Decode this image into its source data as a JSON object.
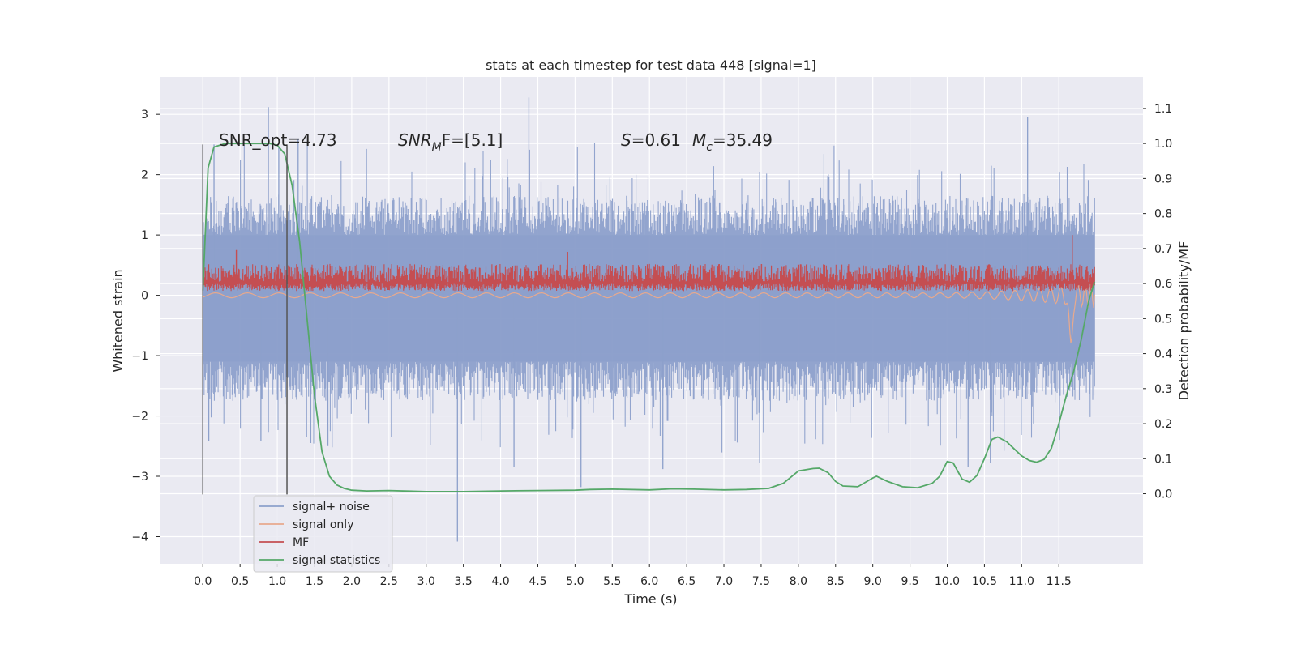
{
  "chart_data": {
    "type": "line",
    "title": "stats at each timestep for test data 448 [signal=1]",
    "xlabel": "Time (s)",
    "ylabel": "Whitened strain",
    "y2label": "Detection probability/MF",
    "xlim": [
      -0.58,
      12.63
    ],
    "ylim": [
      -4.45,
      3.62
    ],
    "y2lim": [
      -0.2,
      1.19
    ],
    "grid": true,
    "legend_position": "lower-left",
    "xticks": [
      "0.0",
      "0.5",
      "1.0",
      "1.5",
      "2.0",
      "2.5",
      "3.0",
      "3.5",
      "4.0",
      "4.5",
      "5.0",
      "5.5",
      "6.0",
      "6.5",
      "7.0",
      "7.5",
      "8.0",
      "8.5",
      "9.0",
      "9.5",
      "10.0",
      "10.5",
      "11.0",
      "11.5"
    ],
    "yticks": [
      "3",
      "2",
      "1",
      "0",
      "−1",
      "−2",
      "−3",
      "−4"
    ],
    "y2ticks": [
      "1.1",
      "1.0",
      "0.9",
      "0.8",
      "0.7",
      "0.6",
      "0.5",
      "0.4",
      "0.3",
      "0.2",
      "0.1",
      "0.0"
    ],
    "vlines": [
      0.0,
      1.13
    ],
    "annotations": [
      {
        "id": "snr_opt",
        "text": "SNR_opt=4.73"
      },
      {
        "id": "snr_mf",
        "prefix": "SNR",
        "sub": "M",
        "suffix": "F=[5.1]"
      },
      {
        "id": "s_mc",
        "s_label": "S",
        "s_value": "=0.61",
        "m_label": "M",
        "m_sub": "c",
        "m_value": "=35.49"
      }
    ],
    "series": [
      {
        "name": "signal+ noise",
        "color": "#8da0cb",
        "kind": "noise_band",
        "t_range": [
          0.0,
          11.98
        ],
        "inner_band": [
          -1.1,
          1.0
        ],
        "outer_band": [
          -1.75,
          1.65
        ],
        "spikes": [
          {
            "t": 0.88,
            "v": 3.12
          },
          {
            "t": 1.02,
            "v": 2.45
          },
          {
            "t": 0.15,
            "v": 2.5
          },
          {
            "t": 3.42,
            "v": -4.08
          },
          {
            "t": 4.38,
            "v": 3.28
          },
          {
            "t": 5.08,
            "v": -3.18
          },
          {
            "t": 0.08,
            "v": -2.42
          },
          {
            "t": 0.78,
            "v": -2.42
          },
          {
            "t": 1.68,
            "v": -2.5
          },
          {
            "t": 4.18,
            "v": -2.85
          },
          {
            "t": 6.18,
            "v": -2.88
          },
          {
            "t": 7.48,
            "v": -2.78
          },
          {
            "t": 10.28,
            "v": -2.85
          },
          {
            "t": 10.58,
            "v": -2.78
          },
          {
            "t": 11.08,
            "v": 2.95
          },
          {
            "t": 1.28,
            "v": 2.6
          },
          {
            "t": 1.45,
            "v": -2.45
          }
        ]
      },
      {
        "name": "signal only",
        "color": "#e8a98d",
        "kind": "chirp",
        "t_range": [
          0.0,
          11.98
        ],
        "end_dip": -0.92,
        "end_peak": 0.35
      },
      {
        "name": "MF",
        "color": "#c44e52",
        "kind": "mf_band",
        "t_range": [
          0.0,
          11.98
        ],
        "band": [
          0.07,
          0.52
        ],
        "spikes": [
          {
            "t": 11.68,
            "v": 1.0
          },
          {
            "t": 0.45,
            "v": 0.75
          },
          {
            "t": 4.9,
            "v": 0.72
          }
        ]
      },
      {
        "name": "signal statistics",
        "color": "#55a868",
        "axis": "y2",
        "x": [
          0.0,
          0.07,
          0.15,
          0.3,
          0.5,
          0.7,
          0.9,
          1.0,
          1.1,
          1.2,
          1.3,
          1.4,
          1.5,
          1.6,
          1.7,
          1.8,
          1.9,
          2.0,
          2.2,
          2.5,
          3.0,
          3.5,
          4.0,
          4.5,
          5.0,
          5.2,
          5.5,
          6.0,
          6.3,
          6.6,
          7.0,
          7.3,
          7.6,
          7.8,
          8.0,
          8.2,
          8.28,
          8.4,
          8.5,
          8.6,
          8.8,
          9.0,
          9.05,
          9.2,
          9.4,
          9.6,
          9.8,
          9.9,
          10.0,
          10.08,
          10.2,
          10.3,
          10.4,
          10.5,
          10.6,
          10.68,
          10.8,
          10.9,
          11.0,
          11.1,
          11.2,
          11.3,
          11.4,
          11.5,
          11.6,
          11.7,
          11.8,
          11.9,
          11.98
        ],
        "values": [
          0.58,
          0.93,
          0.99,
          1.0,
          1.0,
          1.0,
          1.0,
          0.995,
          0.97,
          0.88,
          0.72,
          0.5,
          0.28,
          0.12,
          0.05,
          0.025,
          0.015,
          0.01,
          0.008,
          0.009,
          0.006,
          0.006,
          0.008,
          0.009,
          0.01,
          0.012,
          0.013,
          0.011,
          0.014,
          0.013,
          0.011,
          0.012,
          0.015,
          0.03,
          0.065,
          0.072,
          0.073,
          0.06,
          0.035,
          0.022,
          0.02,
          0.045,
          0.05,
          0.035,
          0.02,
          0.017,
          0.03,
          0.05,
          0.092,
          0.088,
          0.042,
          0.033,
          0.052,
          0.1,
          0.155,
          0.162,
          0.148,
          0.128,
          0.108,
          0.095,
          0.09,
          0.098,
          0.13,
          0.2,
          0.28,
          0.35,
          0.44,
          0.55,
          0.605
        ]
      }
    ]
  }
}
